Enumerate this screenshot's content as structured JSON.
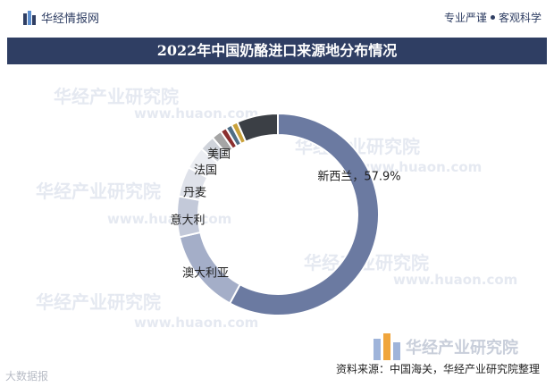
{
  "header": {
    "brand": "华经情报网",
    "tagline_left": "专业严谨",
    "tagline_right": "客观科学"
  },
  "chart_data": {
    "type": "pie",
    "donut": true,
    "title": "2022年中国奶酪进口来源地分布情况",
    "slices": [
      {
        "label": "新西兰",
        "value": 57.9,
        "display": "新西兰，57.9%",
        "color": "#6b7aa1"
      },
      {
        "label": "澳大利亚",
        "value": 13.5,
        "display": "澳大利亚",
        "color": "#a4aec8"
      },
      {
        "label": "意大利",
        "value": 6.5,
        "display": "意大利",
        "color": "#c3c9d9"
      },
      {
        "label": "丹麦",
        "value": 4.8,
        "display": "丹麦",
        "color": "#dfe2ea"
      },
      {
        "label": "法国",
        "value": 3.6,
        "display": "法国",
        "color": "#eceef3"
      },
      {
        "label": "美国",
        "value": 2.5,
        "display": "美国",
        "color": "#cfd3da"
      },
      {
        "label": "",
        "value": 1.6,
        "display": "",
        "color": "#a5a5a5"
      },
      {
        "label": "",
        "value": 1.0,
        "display": "",
        "color": "#8b2f2f"
      },
      {
        "label": "",
        "value": 1.0,
        "display": "",
        "color": "#4f6e86"
      },
      {
        "label": "",
        "value": 1.0,
        "display": "",
        "color": "#c9a13a"
      },
      {
        "label": "",
        "value": 6.6,
        "display": "",
        "color": "#3b3f45"
      }
    ],
    "legend": "none"
  },
  "footer": {
    "source": "资料来源：中国海关，华经产业研究院整理",
    "brand_large": "华经产业研究院",
    "corner": "大数据报"
  },
  "watermarks": [
    "华经产业研究院",
    "www.huaon.com"
  ],
  "colors": {
    "navy": "#2f3e63",
    "accent_blue": "#5b8ecf",
    "accent_orange": "#f0a53c"
  }
}
